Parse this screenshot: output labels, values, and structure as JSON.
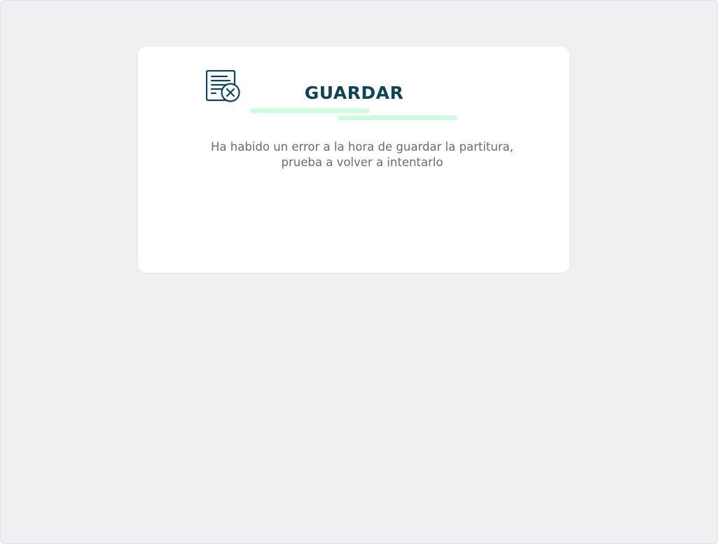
{
  "dialog": {
    "title": "GUARDAR",
    "icon": "document-error-icon",
    "message_line_1": "Ha habido un error a la hora de guardar la partitura,",
    "message_line_2": "prueba a volver a intentarlo"
  },
  "colors": {
    "backdrop": "#eff0f2",
    "dialog_background": "#ffffff",
    "title": "#0d4558",
    "underline": "#c9ffdc",
    "message": "#6b6b6b"
  }
}
